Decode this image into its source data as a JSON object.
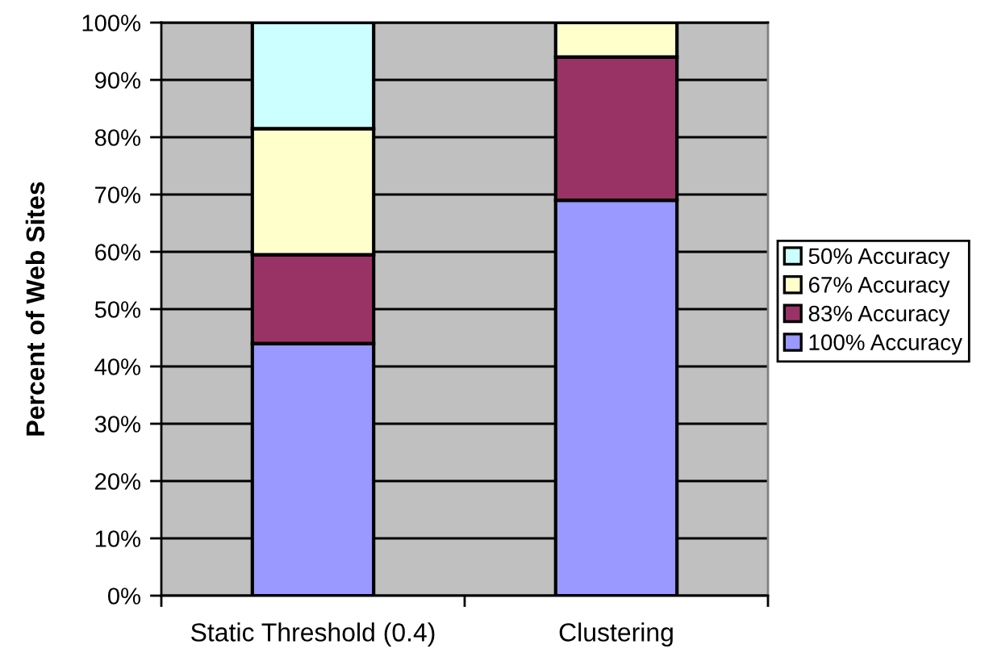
{
  "chart_data": {
    "type": "bar",
    "stacked": true,
    "categories": [
      "Static Threshold (0.4)",
      "Clustering"
    ],
    "ylabel": "Percent of Web Sites",
    "ylim": [
      0,
      100
    ],
    "yticks": [
      {
        "value": 0,
        "label": "0%"
      },
      {
        "value": 10,
        "label": "10%"
      },
      {
        "value": 20,
        "label": "20%"
      },
      {
        "value": 30,
        "label": "30%"
      },
      {
        "value": 40,
        "label": "40%"
      },
      {
        "value": 50,
        "label": "50%"
      },
      {
        "value": 60,
        "label": "60%"
      },
      {
        "value": 70,
        "label": "70%"
      },
      {
        "value": 80,
        "label": "80%"
      },
      {
        "value": 90,
        "label": "90%"
      },
      {
        "value": 100,
        "label": "100%"
      }
    ],
    "grid": "y",
    "legend": "right",
    "series": [
      {
        "name": "100% Accuracy",
        "color": "#9999ff",
        "values": [
          44,
          69
        ]
      },
      {
        "name": "83% Accuracy",
        "color": "#993366",
        "values": [
          15.5,
          25
        ]
      },
      {
        "name": "67% Accuracy",
        "color": "#ffffcc",
        "values": [
          22,
          6
        ]
      },
      {
        "name": "50% Accuracy",
        "color": "#ccffff",
        "values": [
          18.5,
          null
        ]
      }
    ]
  }
}
